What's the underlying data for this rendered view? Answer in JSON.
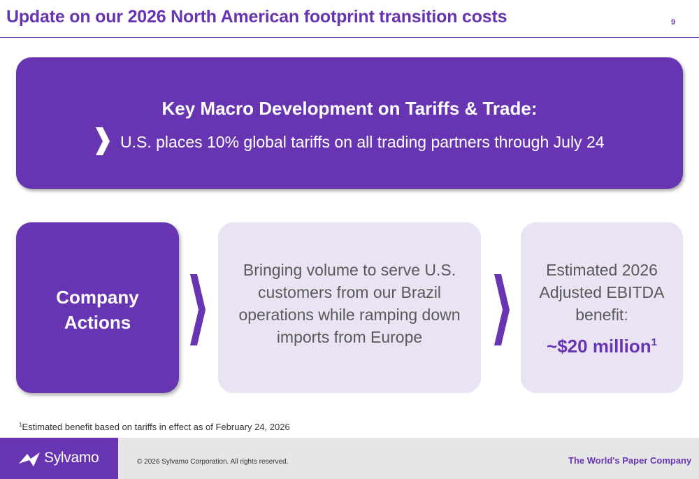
{
  "header": {
    "title": "Update on our 2026 North American footprint transition costs",
    "page_number": "9"
  },
  "macro": {
    "heading": "Key Macro Development on Tariffs & Trade:",
    "bullet": "U.S. places 10% global tariffs on all trading partners through July 24",
    "bullet_icon": "chevron-right-icon"
  },
  "actions": {
    "label": "Company Actions",
    "description": "Bringing volume to serve U.S. customers from our Brazil operations while ramping down imports from Europe",
    "estimate_label": "Estimated 2026 Adjusted EBITDA benefit:",
    "estimate_value": "~$20 million",
    "estimate_footnote_ref": "1",
    "arrow_icon": "chevron-right-icon"
  },
  "footnote": {
    "marker": "1",
    "text": "Estimated benefit based on tariffs in effect as of February 24, 2026"
  },
  "footer": {
    "logo_text": "Sylvamo",
    "logo_icon": "sylvamo-logo-icon",
    "copyright": "© 2026 Sylvamo Corporation. All rights reserved.",
    "tagline": "The World's Paper Company"
  },
  "colors": {
    "brand_purple": "#6735b2",
    "light_lavender": "#e9e3f3",
    "body_text_gray": "#595959",
    "footer_gray": "#e6e6e6"
  }
}
